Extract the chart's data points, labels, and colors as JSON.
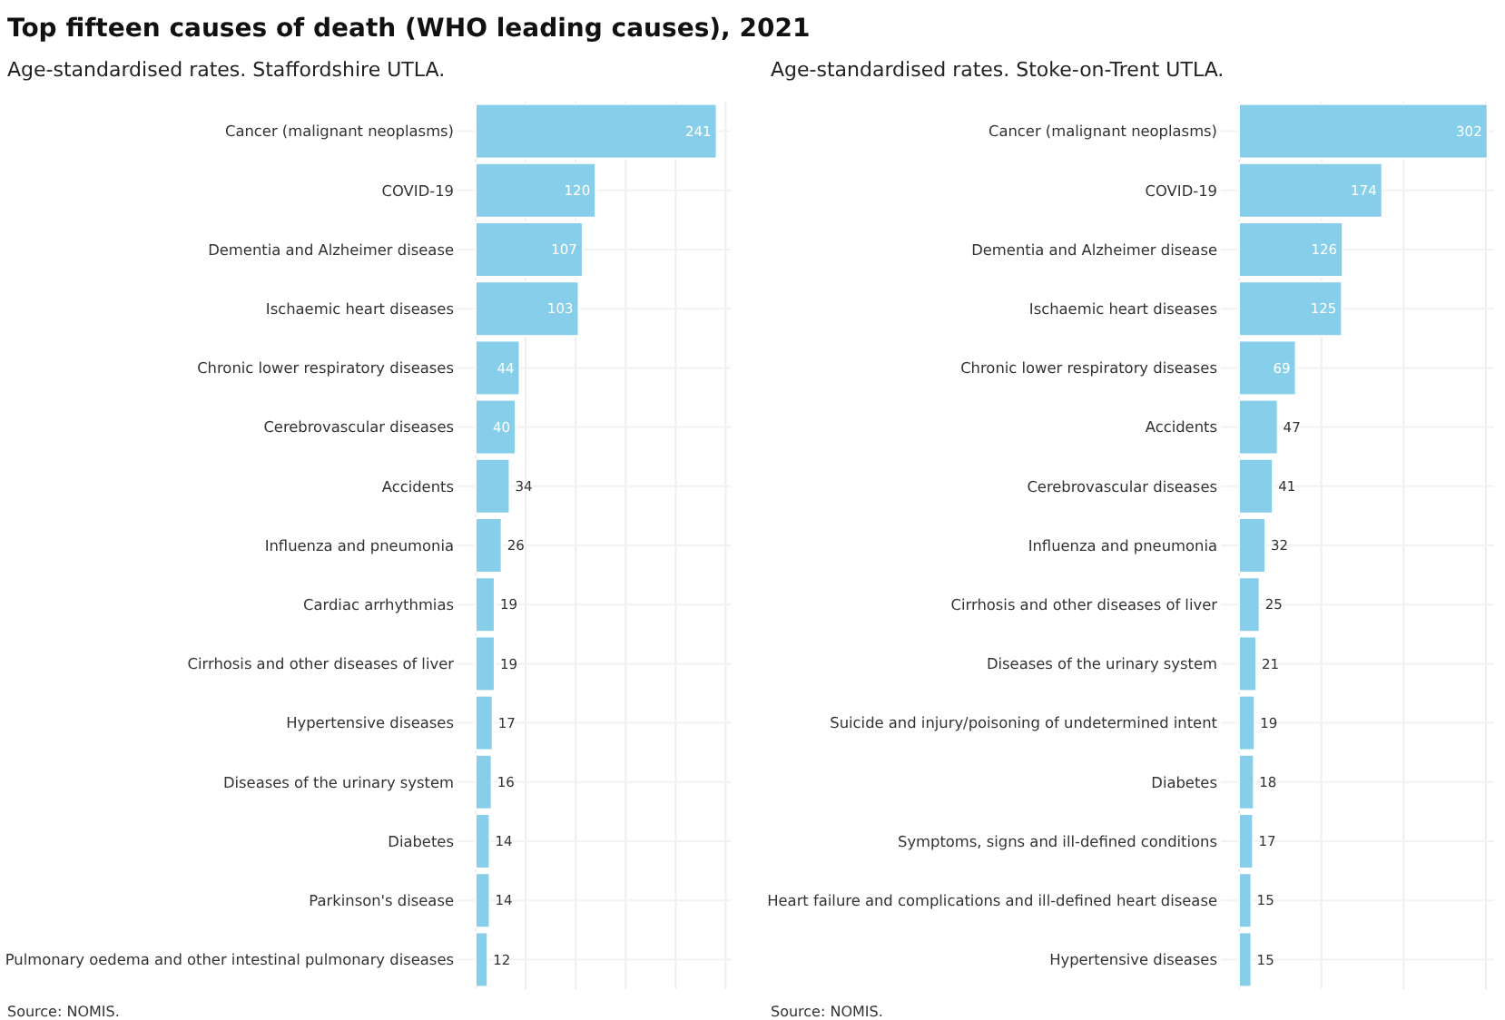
{
  "chart_data": [
    {
      "type": "bar",
      "orientation": "horizontal",
      "title": "Top fifteen causes of death (WHO leading causes), 2021",
      "subtitle": "Age-standardised rates. Staffordshire UTLA.",
      "categories": [
        "Cancer (malignant neoplasms)",
        "COVID-19",
        "Dementia and Alzheimer disease",
        "Ischaemic heart diseases",
        "Chronic lower respiratory diseases",
        "Cerebrovascular diseases",
        "Accidents",
        "Influenza and pneumonia",
        "Cardiac arrhythmias",
        "Cirrhosis and other diseases of liver",
        "Hypertensive diseases",
        "Diseases of the urinary system",
        "Diabetes",
        "Parkinson's disease",
        "Pulmonary oedema and other intestinal pulmonary diseases"
      ],
      "values": [
        241,
        120,
        107,
        103,
        44,
        40,
        34,
        26,
        19,
        19,
        17,
        16,
        14,
        14,
        12
      ],
      "color": "#87ceeb",
      "xlim": [
        0,
        255
      ],
      "xticks": [
        {
          "value": 0,
          "label": null
        },
        {
          "value": 50,
          "label": null
        },
        {
          "value": 100,
          "label": null
        },
        {
          "value": 150,
          "label": null
        },
        {
          "value": 200,
          "label": null
        },
        {
          "value": 250,
          "label": null
        }
      ],
      "tick_labels": "y",
      "grid": true,
      "data_labels": true,
      "annotations": [
        "Source: NOMIS."
      ]
    },
    {
      "type": "bar",
      "orientation": "horizontal",
      "subtitle": "Age-standardised rates. Stoke-on-Trent UTLA.",
      "categories": [
        "Cancer (malignant neoplasms)",
        "COVID-19",
        "Dementia and Alzheimer disease",
        "Ischaemic heart diseases",
        "Chronic lower respiratory diseases",
        "Accidents",
        "Cerebrovascular diseases",
        "Influenza and pneumonia",
        "Cirrhosis and other diseases of liver",
        "Diseases of the urinary system",
        "Suicide and injury/poisoning of undetermined intent",
        "Diabetes",
        "Symptoms, signs and ill-defined conditions",
        "Heart failure and complications and ill-defined heart disease",
        "Hypertensive diseases"
      ],
      "values": [
        302,
        174,
        126,
        125,
        69,
        47,
        41,
        32,
        25,
        21,
        19,
        18,
        17,
        15,
        15
      ],
      "color": "#87ceeb",
      "xlim": [
        0,
        310
      ],
      "xticks": [
        {
          "value": 0,
          "label": null
        },
        {
          "value": 100,
          "label": null
        },
        {
          "value": 200,
          "label": null
        },
        {
          "value": 300,
          "label": null
        }
      ],
      "tick_labels": "y",
      "grid": true,
      "data_labels": true,
      "annotations": [
        "Source: NOMIS."
      ]
    }
  ]
}
